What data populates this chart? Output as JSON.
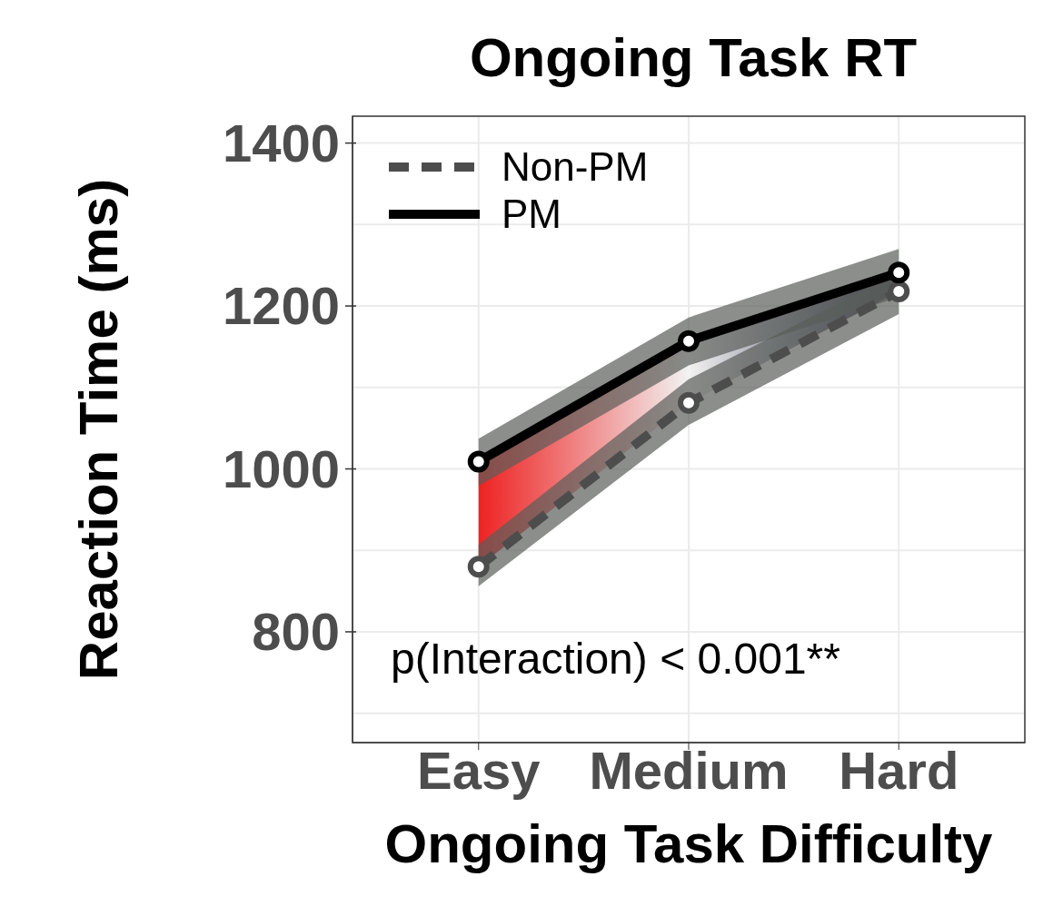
{
  "chart_data": {
    "type": "line",
    "title": "Ongoing Task RT",
    "xlabel": "Ongoing Task Difficulty",
    "ylabel": "Reaction Time (ms)",
    "categories": [
      "Easy",
      "Medium",
      "Hard"
    ],
    "series": [
      {
        "name": "Non-PM",
        "color": "#4d4d4d",
        "line_style": "dashed",
        "values": [
          880,
          1081,
          1218
        ],
        "lower": [
          856,
          1054,
          1190
        ],
        "upper": [
          907,
          1110,
          1241
        ]
      },
      {
        "name": "PM",
        "color": "#000000",
        "line_style": "solid",
        "values": [
          1009,
          1157,
          1241
        ],
        "lower": [
          979,
          1127,
          1211
        ],
        "upper": [
          1037,
          1186,
          1270
        ]
      }
    ],
    "ylim": [
      664,
      1433
    ],
    "yticks": [
      {
        "value": 700,
        "label": null
      },
      800,
      {
        "value": 900,
        "label": null
      },
      1000,
      {
        "value": 1100,
        "label": null
      },
      1200,
      {
        "value": 1300,
        "label": null
      },
      1400
    ],
    "grid": true,
    "legend": "top left",
    "marker": "circle",
    "annotations": [
      "p(Interaction) < 0.001**"
    ]
  }
}
